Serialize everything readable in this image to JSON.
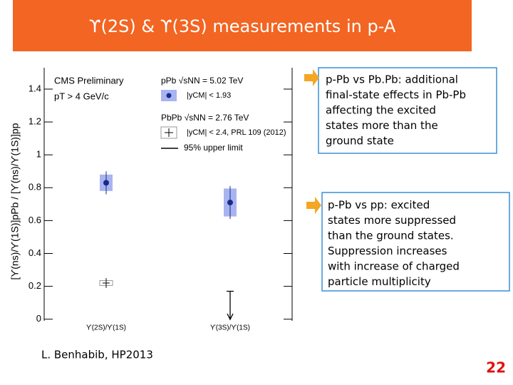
{
  "slide": {
    "title": "ϒ(2S) & ϒ(3S) measurements in p-A",
    "author": "L. Benhabib, HP2013",
    "page": "22",
    "notes": [
      {
        "lines": [
          "p-Pb vs Pb.Pb: additional",
          "final-state effects in Pb-Pb",
          "affecting the excited",
          "states more than the",
          "ground state"
        ]
      },
      {
        "lines": [
          "p-Pb vs pp: excited",
          "states more suppressed",
          "than the ground states.",
          "Suppression increases",
          "with increase of charged",
          "particle multiplicity"
        ]
      }
    ]
  },
  "chart_data": {
    "type": "errorbar",
    "y_label": "[ϒ(ns)/ϒ(1S)]pPb / [ϒ(ns)/ϒ(1S)]pp",
    "annotations": [
      "CMS Preliminary",
      "pT > 4 GeV/c"
    ],
    "categories": [
      "ϒ(2S)/ϒ(1S)",
      "ϒ(3S)/ϒ(1S)"
    ],
    "ylim": [
      -0.01,
      1.53
    ],
    "yticks": [
      0,
      0.2,
      0.4,
      0.6,
      0.8,
      1,
      1.2,
      1.4
    ],
    "series": [
      {
        "name": "pPb √sNN = 5.02 TeV",
        "detail": "|yCM| < 1.93",
        "color": "#1a2a8a",
        "box_color": "#a8b4f0",
        "values": [
          0.83,
          0.71
        ],
        "errors": [
          0.07,
          0.1
        ],
        "syst": [
          0.05,
          0.085
        ]
      },
      {
        "name": "PbPb √sNN = 2.76 TeV",
        "detail": "|yCM| < 2.4, PRL 109 (2012)",
        "color": "#000000",
        "box_color": "#999999",
        "values": [
          0.22,
          null
        ],
        "errors": [
          0.03,
          null
        ],
        "syst": [
          0.015,
          null
        ]
      },
      {
        "name": "95% upper limit",
        "color": "#000000",
        "values": [
          null,
          0.17
        ]
      }
    ]
  }
}
